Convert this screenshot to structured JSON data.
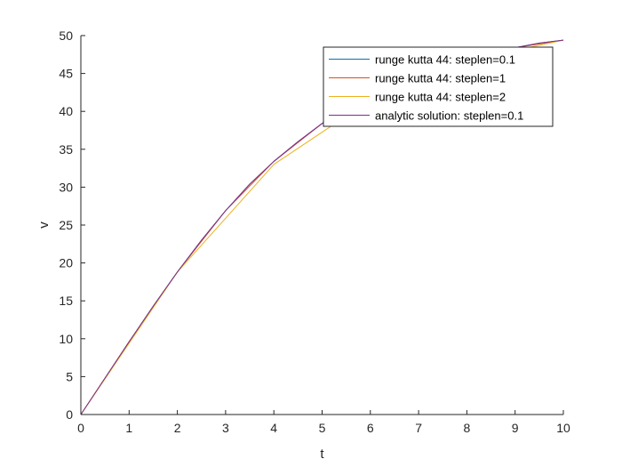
{
  "chart_data": {
    "type": "line",
    "title": "",
    "xlabel": "t",
    "ylabel": "v",
    "xlim": [
      0,
      10
    ],
    "ylim": [
      0,
      50
    ],
    "xticks": [
      "0",
      "1",
      "2",
      "3",
      "4",
      "5",
      "6",
      "7",
      "8",
      "9",
      "10"
    ],
    "yticks": [
      "0",
      "5",
      "10",
      "15",
      "20",
      "25",
      "30",
      "35",
      "40",
      "45",
      "50"
    ],
    "grid": false,
    "legend_position": "top-right",
    "series": [
      {
        "name": "runge kutta 44: steplen=0.1",
        "color": "#0072BD",
        "x": [
          0,
          0.5,
          1,
          1.5,
          2,
          2.5,
          3,
          3.5,
          4,
          4.5,
          5,
          5.5,
          6,
          6.5,
          7,
          7.5,
          8,
          8.5,
          9,
          9.5,
          10
        ],
        "y": [
          0,
          4.8,
          9.6,
          14.3,
          18.8,
          23.0,
          26.9,
          30.4,
          33.4,
          36.0,
          38.4,
          40.4,
          42.1,
          43.6,
          44.9,
          46.0,
          46.9,
          47.7,
          48.4,
          49.0,
          49.4
        ]
      },
      {
        "name": "runge kutta 44: steplen=1",
        "color": "#D95319",
        "x": [
          0,
          1,
          2,
          3,
          4,
          5,
          6,
          7,
          8,
          9,
          10
        ],
        "y": [
          0,
          9.6,
          18.8,
          26.9,
          33.4,
          38.4,
          42.1,
          44.9,
          46.9,
          48.4,
          49.4
        ]
      },
      {
        "name": "runge kutta 44: steplen=2",
        "color": "#EDB120",
        "x": [
          0,
          2,
          4,
          6,
          8,
          10
        ],
        "y": [
          0,
          18.8,
          33.0,
          41.5,
          46.7,
          49.4
        ]
      },
      {
        "name": "analytic solution: steplen=0.1",
        "color": "#7E2F8E",
        "x": [
          0,
          0.5,
          1,
          1.5,
          2,
          2.5,
          3,
          3.5,
          4,
          4.5,
          5,
          5.5,
          6,
          6.5,
          7,
          7.5,
          8,
          8.5,
          9,
          9.5,
          10
        ],
        "y": [
          0,
          4.8,
          9.6,
          14.3,
          18.8,
          23.0,
          26.9,
          30.4,
          33.4,
          36.0,
          38.4,
          40.4,
          42.1,
          43.6,
          44.9,
          46.0,
          46.9,
          47.7,
          48.4,
          49.0,
          49.4
        ]
      }
    ]
  }
}
